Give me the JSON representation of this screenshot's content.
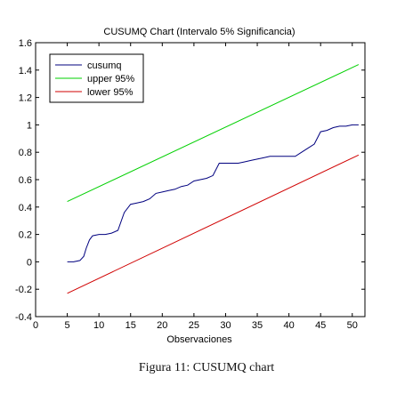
{
  "caption": "Figura 11: CUSUMQ chart",
  "chart_data": {
    "type": "line",
    "title": "CUSUMQ Chart (Intervalo 5% Significancia)",
    "xlabel": "Observaciones",
    "ylabel": "",
    "xlim": [
      0,
      52
    ],
    "ylim": [
      -0.4,
      1.6
    ],
    "xticks": [
      "0",
      "5",
      "10",
      "15",
      "20",
      "25",
      "30",
      "35",
      "40",
      "45",
      "50"
    ],
    "yticks": [
      "-0.4",
      "-0.2",
      "0",
      "0.2",
      "0.4",
      "0.6",
      "0.8",
      "1",
      "1.2",
      "1.4",
      "1.6"
    ],
    "grid": false,
    "legend_position": "top-left",
    "series": [
      {
        "name": "cusumq",
        "color": "#00007f",
        "x": [
          5,
          6,
          7,
          7.6,
          8,
          8.5,
          9,
          10,
          11,
          12,
          13,
          14,
          15,
          16,
          17,
          18,
          19,
          20,
          21,
          22,
          23,
          24,
          25,
          26,
          27,
          28,
          29,
          30,
          31,
          32,
          33,
          34,
          35,
          36,
          37,
          38,
          39,
          40,
          41,
          42,
          43,
          44,
          45,
          46,
          47,
          48,
          49,
          50,
          51
        ],
        "y": [
          0.0,
          0.0,
          0.01,
          0.04,
          0.1,
          0.16,
          0.19,
          0.2,
          0.2,
          0.21,
          0.23,
          0.36,
          0.42,
          0.43,
          0.44,
          0.46,
          0.5,
          0.51,
          0.52,
          0.53,
          0.55,
          0.56,
          0.59,
          0.6,
          0.61,
          0.63,
          0.72,
          0.72,
          0.72,
          0.72,
          0.73,
          0.74,
          0.75,
          0.76,
          0.77,
          0.77,
          0.77,
          0.77,
          0.77,
          0.8,
          0.83,
          0.86,
          0.95,
          0.96,
          0.98,
          0.99,
          0.99,
          1.0,
          1.0
        ]
      },
      {
        "name": "upper 95%",
        "color": "#00d000",
        "x": [
          5,
          51
        ],
        "y": [
          0.44,
          1.44
        ]
      },
      {
        "name": "lower 95%",
        "color": "#d00000",
        "x": [
          5,
          51
        ],
        "y": [
          -0.23,
          0.78
        ]
      }
    ]
  }
}
